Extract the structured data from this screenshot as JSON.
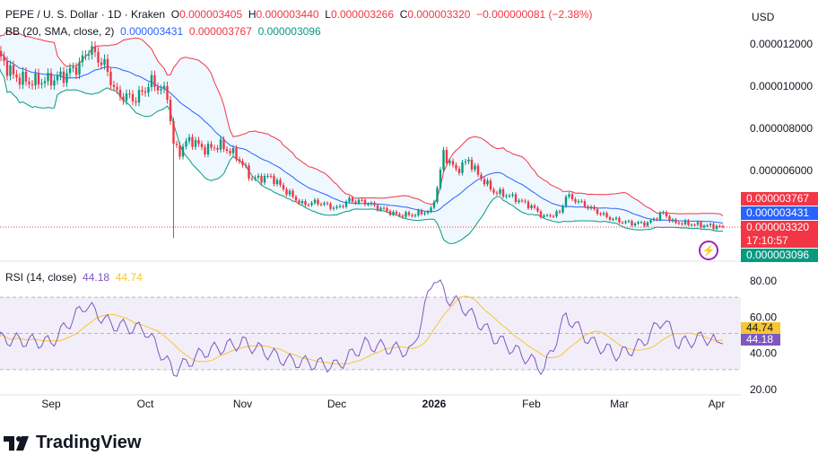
{
  "header": {
    "symbol": "PEPE / U. S. Dollar · 1D · Kraken",
    "o_label": "O",
    "o": "0.000003405",
    "h_label": "H",
    "h": "0.000003440",
    "l_label": "L",
    "l": "0.000003266",
    "c_label": "C",
    "c": "0.000003320",
    "change": "−0.000000081 (−2.38%)"
  },
  "bb": {
    "label": "BB (20, SMA, close, 2)",
    "basis": "0.000003431",
    "upper": "0.000003767",
    "lower": "0.000003096"
  },
  "currency": "USD",
  "price_tags": {
    "upper": "0.000003767",
    "basis": "0.000003431",
    "last": "0.000003320",
    "countdown": "17:10:57",
    "lower": "0.000003096"
  },
  "rsi": {
    "label": "RSI (14, close)",
    "value": "44.18",
    "ma": "44.74"
  },
  "brand": "TradingView",
  "colors": {
    "up": "#089981",
    "down": "#f23645",
    "bb_upper": "#f23645",
    "bb_basis": "#2962ff",
    "bb_lower": "#089981",
    "rsi": "#7e57c2",
    "rsi_ma": "#f7c631"
  },
  "chart_data": [
    {
      "type": "candlestick",
      "title": "PEPE / U. S. Dollar · 1D · Kraken",
      "unit": "USD ×1e-6 (approx closes)",
      "y_ticks": [
        "0.000012000",
        "0.000010000",
        "0.000008000",
        "0.000006000"
      ],
      "x_ticks": [
        "Sep",
        "Oct",
        "Nov",
        "Dec",
        "2026",
        "Feb",
        "Mar",
        "Apr"
      ],
      "closes": [
        [
          "2025-08-15",
          11.5
        ],
        [
          "2025-08-20",
          10.5
        ],
        [
          "2025-08-25",
          10.2
        ],
        [
          "2025-09-01",
          10.3
        ],
        [
          "2025-09-05",
          10.5
        ],
        [
          "2025-09-10",
          11.0
        ],
        [
          "2025-09-13",
          11.8
        ],
        [
          "2025-09-18",
          11.0
        ],
        [
          "2025-09-22",
          9.6
        ],
        [
          "2025-09-28",
          9.4
        ],
        [
          "2025-10-03",
          10.2
        ],
        [
          "2025-10-08",
          9.6
        ],
        [
          "2025-10-10",
          7.2
        ],
        [
          "2025-10-12",
          6.9
        ],
        [
          "2025-10-15",
          7.5
        ],
        [
          "2025-10-20",
          7.0
        ],
        [
          "2025-10-25",
          7.2
        ],
        [
          "2025-10-30",
          6.7
        ],
        [
          "2025-11-04",
          5.6
        ],
        [
          "2025-11-10",
          5.7
        ],
        [
          "2025-11-15",
          5.0
        ],
        [
          "2025-11-20",
          4.4
        ],
        [
          "2025-11-25",
          4.5
        ],
        [
          "2025-12-01",
          4.2
        ],
        [
          "2025-12-05",
          4.6
        ],
        [
          "2025-12-10",
          4.5
        ],
        [
          "2025-12-15",
          4.2
        ],
        [
          "2025-12-20",
          3.9
        ],
        [
          "2025-12-25",
          3.9
        ],
        [
          "2025-12-31",
          4.1
        ],
        [
          "2026-01-02",
          5.2
        ],
        [
          "2026-01-04",
          6.8
        ],
        [
          "2026-01-08",
          6.0
        ],
        [
          "2026-01-12",
          6.5
        ],
        [
          "2026-01-15",
          5.8
        ],
        [
          "2026-01-20",
          5.0
        ],
        [
          "2026-01-25",
          4.8
        ],
        [
          "2026-02-01",
          4.3
        ],
        [
          "2026-02-05",
          3.8
        ],
        [
          "2026-02-10",
          4.0
        ],
        [
          "2026-02-12",
          4.8
        ],
        [
          "2026-02-15",
          4.6
        ],
        [
          "2026-02-20",
          4.2
        ],
        [
          "2026-02-25",
          3.8
        ],
        [
          "2026-03-01",
          3.6
        ],
        [
          "2026-03-05",
          3.5
        ],
        [
          "2026-03-10",
          3.5
        ],
        [
          "2026-03-15",
          4.0
        ],
        [
          "2026-03-18",
          3.55
        ],
        [
          "2026-03-22",
          3.5
        ],
        [
          "2026-03-28",
          3.4
        ],
        [
          "2026-04-03",
          3.32
        ]
      ],
      "wick_low": [
        "2025-10-10",
        2.8
      ]
    },
    {
      "type": "line",
      "title": "RSI (14, close)",
      "y_ticks": [
        "80.00",
        "60.00",
        "40.00",
        "20.00"
      ],
      "bands": [
        30,
        50,
        70
      ],
      "values": [
        [
          "2025-08-15",
          47
        ],
        [
          "2025-09-01",
          45
        ],
        [
          "2025-09-12",
          66
        ],
        [
          "2025-09-20",
          55
        ],
        [
          "2025-10-01",
          52
        ],
        [
          "2025-10-10",
          29
        ],
        [
          "2025-10-20",
          40
        ],
        [
          "2025-11-01",
          45
        ],
        [
          "2025-11-15",
          35
        ],
        [
          "2025-12-01",
          32
        ],
        [
          "2025-12-10",
          44
        ],
        [
          "2025-12-25",
          40
        ],
        [
          "2026-01-01",
          82
        ],
        [
          "2026-01-05",
          70
        ],
        [
          "2026-01-10",
          65
        ],
        [
          "2026-01-20",
          48
        ],
        [
          "2026-02-01",
          35
        ],
        [
          "2026-02-05",
          30
        ],
        [
          "2026-02-12",
          60
        ],
        [
          "2026-02-20",
          45
        ],
        [
          "2026-03-01",
          38
        ],
        [
          "2026-03-08",
          44
        ],
        [
          "2026-03-15",
          58
        ],
        [
          "2026-03-20",
          44
        ],
        [
          "2026-03-28",
          48
        ],
        [
          "2026-04-03",
          44.18
        ]
      ]
    }
  ]
}
